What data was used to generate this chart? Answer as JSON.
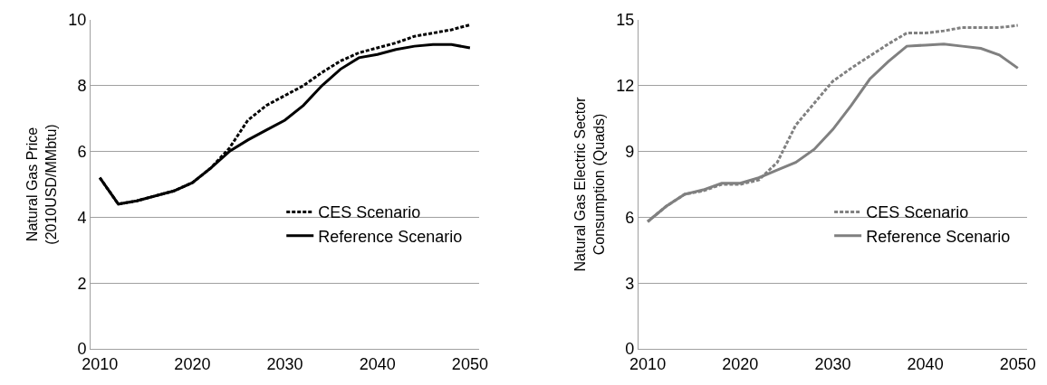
{
  "chart_data": [
    {
      "type": "line",
      "ylabel": "Natural Gas Price\n(2010USD/MMbtu)",
      "x": [
        2010,
        2012,
        2014,
        2016,
        2018,
        2020,
        2022,
        2024,
        2026,
        2028,
        2030,
        2032,
        2034,
        2036,
        2038,
        2040,
        2042,
        2044,
        2046,
        2048,
        2050
      ],
      "xlim": [
        2009,
        2051
      ],
      "xticks": [
        2010,
        2020,
        2030,
        2040,
        2050
      ],
      "ylim": [
        0,
        10
      ],
      "yticks": [
        0,
        2,
        4,
        6,
        8,
        10
      ],
      "grid": "y",
      "legend": "right",
      "marker": "none",
      "series": [
        {
          "name": "CES Scenario",
          "color": "#000000",
          "line_style": "dashed",
          "values": [
            5.2,
            4.4,
            4.5,
            4.65,
            4.8,
            5.05,
            5.5,
            6.1,
            6.95,
            7.4,
            7.7,
            8.0,
            8.4,
            8.75,
            9.0,
            9.15,
            9.3,
            9.5,
            9.6,
            9.7,
            9.85
          ]
        },
        {
          "name": "Reference Scenario",
          "color": "#000000",
          "line_style": "solid",
          "values": [
            5.2,
            4.4,
            4.5,
            4.65,
            4.8,
            5.05,
            5.5,
            6.0,
            6.35,
            6.65,
            6.95,
            7.4,
            8.0,
            8.5,
            8.85,
            8.95,
            9.1,
            9.2,
            9.25,
            9.25,
            9.15
          ]
        }
      ]
    },
    {
      "type": "line",
      "ylabel": "Natural Gas Electric Sector\nConsumption (Quads)",
      "x": [
        2010,
        2012,
        2014,
        2016,
        2018,
        2020,
        2022,
        2024,
        2026,
        2028,
        2030,
        2032,
        2034,
        2036,
        2038,
        2040,
        2042,
        2044,
        2046,
        2048,
        2050
      ],
      "xlim": [
        2009,
        2051
      ],
      "xticks": [
        2010,
        2020,
        2030,
        2040,
        2050
      ],
      "ylim": [
        0,
        15
      ],
      "yticks": [
        0,
        3,
        6,
        9,
        12,
        15
      ],
      "grid": "y",
      "legend": "right",
      "marker": "none",
      "series": [
        {
          "name": "CES Scenario",
          "color": "#808080",
          "line_style": "dashed",
          "values": [
            5.8,
            6.5,
            7.05,
            7.2,
            7.5,
            7.5,
            7.7,
            8.5,
            10.2,
            11.2,
            12.2,
            12.8,
            13.35,
            13.9,
            14.4,
            14.4,
            14.5,
            14.65,
            14.65,
            14.65,
            14.75
          ]
        },
        {
          "name": "Reference Scenario",
          "color": "#808080",
          "line_style": "solid",
          "values": [
            5.8,
            6.5,
            7.05,
            7.25,
            7.55,
            7.55,
            7.8,
            8.15,
            8.5,
            9.1,
            10.0,
            11.1,
            12.3,
            13.1,
            13.8,
            13.85,
            13.9,
            13.8,
            13.7,
            13.4,
            12.8
          ]
        }
      ]
    }
  ]
}
